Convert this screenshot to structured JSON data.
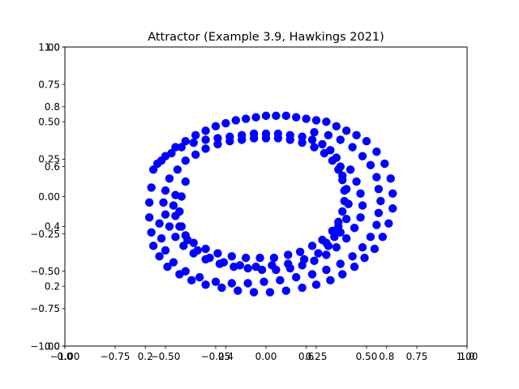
{
  "chart_data": {
    "type": "scatter",
    "title": "Attractor (Example 3.9, Hawkings 2021)",
    "xlabel": "",
    "ylabel": "",
    "grid": false,
    "legend": "none",
    "marker_color": "#0000ff",
    "axes": {
      "primary": {
        "xlim": [
          -1.0,
          1.0
        ],
        "ylim": [
          -1.0,
          1.0
        ],
        "x_ticks": [
          {
            "value": -1.0,
            "label": "−1.00"
          },
          {
            "value": -0.75,
            "label": "−0.75"
          },
          {
            "value": -0.5,
            "label": "−0.50"
          },
          {
            "value": -0.25,
            "label": "−0.25"
          },
          {
            "value": 0.0,
            "label": "0.00"
          },
          {
            "value": 0.25,
            "label": "0.25"
          },
          {
            "value": 0.5,
            "label": "0.50"
          },
          {
            "value": 0.75,
            "label": "0.75"
          },
          {
            "value": 1.0,
            "label": "1.00"
          }
        ],
        "y_ticks": [
          {
            "value": -1.0,
            "label": "−1.00"
          },
          {
            "value": -0.75,
            "label": "−0.75"
          },
          {
            "value": -0.5,
            "label": "−0.50"
          },
          {
            "value": -0.25,
            "label": "−0.25"
          },
          {
            "value": 0.0,
            "label": "0.00"
          },
          {
            "value": 0.25,
            "label": "0.25"
          },
          {
            "value": 0.5,
            "label": "0.50"
          },
          {
            "value": 0.75,
            "label": "0.75"
          },
          {
            "value": 1.0,
            "label": "1.00"
          }
        ]
      },
      "secondary": {
        "xlim": [
          0.0,
          1.0
        ],
        "ylim": [
          0.0,
          1.0
        ],
        "x_ticks": [
          {
            "value": 0.0,
            "label": "0.0"
          },
          {
            "value": 0.2,
            "label": "0.2"
          },
          {
            "value": 0.4,
            "label": "0.4"
          },
          {
            "value": 0.6,
            "label": "0.6"
          },
          {
            "value": 0.8,
            "label": "0.8"
          },
          {
            "value": 1.0,
            "label": "1.0"
          }
        ],
        "y_ticks": [
          {
            "value": 0.0,
            "label": "0.0"
          },
          {
            "value": 0.2,
            "label": "0.2"
          },
          {
            "value": 0.4,
            "label": "0.4"
          },
          {
            "value": 0.6,
            "label": "0.6"
          },
          {
            "value": 0.8,
            "label": "0.8"
          },
          {
            "value": 1.0,
            "label": "1.0"
          }
        ]
      }
    },
    "series": [
      {
        "points": [
          [
            -0.56,
            0.18
          ],
          [
            -0.54,
            0.22
          ],
          [
            -0.5,
            0.27
          ],
          [
            -0.45,
            0.33
          ],
          [
            -0.4,
            0.37
          ],
          [
            -0.35,
            0.41
          ],
          [
            -0.3,
            0.44
          ],
          [
            -0.25,
            0.47
          ],
          [
            -0.2,
            0.49
          ],
          [
            -0.15,
            0.51
          ],
          [
            -0.1,
            0.52
          ],
          [
            -0.05,
            0.53
          ],
          [
            0.0,
            0.54
          ],
          [
            0.05,
            0.54
          ],
          [
            0.1,
            0.54
          ],
          [
            0.15,
            0.53
          ],
          [
            0.2,
            0.52
          ],
          [
            0.25,
            0.51
          ],
          [
            0.3,
            0.5
          ],
          [
            0.35,
            0.47
          ],
          [
            0.4,
            0.44
          ],
          [
            0.45,
            0.41
          ],
          [
            0.5,
            0.37
          ],
          [
            0.55,
            0.3
          ],
          [
            0.59,
            0.22
          ],
          [
            0.62,
            0.12
          ],
          [
            0.63,
            0.02
          ],
          [
            0.63,
            -0.08
          ],
          [
            0.61,
            -0.18
          ],
          [
            0.58,
            -0.27
          ],
          [
            0.54,
            -0.35
          ],
          [
            0.49,
            -0.41
          ],
          [
            0.44,
            -0.47
          ],
          [
            0.38,
            -0.52
          ],
          [
            0.32,
            -0.56
          ],
          [
            0.25,
            -0.59
          ],
          [
            0.18,
            -0.61
          ],
          [
            0.1,
            -0.63
          ],
          [
            0.02,
            -0.64
          ],
          [
            -0.06,
            -0.64
          ],
          [
            -0.14,
            -0.63
          ],
          [
            -0.22,
            -0.61
          ],
          [
            -0.3,
            -0.59
          ],
          [
            -0.37,
            -0.56
          ],
          [
            -0.43,
            -0.52
          ],
          [
            -0.49,
            -0.47
          ],
          [
            -0.53,
            -0.4
          ],
          [
            -0.56,
            -0.33
          ],
          [
            -0.57,
            -0.24
          ],
          [
            -0.58,
            -0.14
          ],
          [
            -0.58,
            -0.04
          ],
          [
            -0.57,
            0.06
          ],
          [
            -0.52,
            0.24
          ],
          [
            -0.47,
            0.29
          ],
          [
            -0.42,
            0.33
          ],
          [
            -0.36,
            0.36
          ],
          [
            -0.3,
            0.38
          ],
          [
            -0.24,
            0.39
          ],
          [
            -0.18,
            0.4
          ],
          [
            -0.12,
            0.41
          ],
          [
            -0.06,
            0.42
          ],
          [
            0.0,
            0.42
          ],
          [
            0.06,
            0.42
          ],
          [
            0.12,
            0.41
          ],
          [
            0.18,
            0.4
          ],
          [
            0.23,
            0.38
          ],
          [
            0.28,
            0.35
          ],
          [
            0.32,
            0.31
          ],
          [
            0.35,
            0.26
          ],
          [
            0.37,
            0.2
          ],
          [
            0.38,
            0.14
          ],
          [
            0.42,
            0.18
          ],
          [
            0.45,
            0.1
          ],
          [
            0.47,
            0.02
          ],
          [
            0.48,
            -0.06
          ],
          [
            0.47,
            -0.14
          ],
          [
            0.44,
            -0.21
          ],
          [
            0.4,
            -0.28
          ],
          [
            0.35,
            -0.34
          ],
          [
            0.3,
            -0.39
          ],
          [
            0.24,
            -0.43
          ],
          [
            0.18,
            -0.46
          ],
          [
            0.12,
            -0.48
          ],
          [
            0.05,
            -0.49
          ],
          [
            -0.02,
            -0.49
          ],
          [
            -0.09,
            -0.48
          ],
          [
            -0.16,
            -0.47
          ],
          [
            -0.23,
            -0.45
          ],
          [
            -0.3,
            -0.42
          ],
          [
            -0.36,
            -0.38
          ],
          [
            -0.41,
            -0.33
          ],
          [
            -0.45,
            -0.27
          ],
          [
            -0.48,
            -0.2
          ],
          [
            -0.5,
            -0.12
          ],
          [
            -0.51,
            -0.04
          ],
          [
            -0.5,
            0.04
          ],
          [
            -0.48,
            0.12
          ],
          [
            -0.44,
            0.18
          ],
          [
            -0.4,
            0.24
          ],
          [
            -0.35,
            0.28
          ],
          [
            -0.3,
            0.32
          ],
          [
            -0.24,
            0.35
          ],
          [
            -0.18,
            0.37
          ],
          [
            -0.12,
            0.38
          ],
          [
            -0.06,
            0.39
          ],
          [
            0.0,
            0.39
          ],
          [
            0.06,
            0.39
          ],
          [
            0.12,
            0.38
          ],
          [
            0.18,
            0.36
          ],
          [
            0.24,
            0.33
          ],
          [
            0.29,
            0.29
          ],
          [
            0.33,
            0.24
          ],
          [
            0.36,
            0.18
          ],
          [
            0.38,
            0.11
          ],
          [
            0.39,
            0.04
          ],
          [
            0.39,
            -0.03
          ],
          [
            0.38,
            -0.1
          ],
          [
            0.36,
            -0.17
          ],
          [
            0.33,
            -0.23
          ],
          [
            0.28,
            -0.29
          ],
          [
            0.23,
            -0.33
          ],
          [
            0.17,
            -0.37
          ],
          [
            0.11,
            -0.39
          ],
          [
            0.04,
            -0.41
          ],
          [
            -0.03,
            -0.41
          ],
          [
            -0.1,
            -0.41
          ],
          [
            -0.17,
            -0.4
          ],
          [
            -0.24,
            -0.38
          ],
          [
            -0.3,
            -0.35
          ],
          [
            -0.36,
            -0.31
          ],
          [
            -0.4,
            -0.26
          ],
          [
            -0.43,
            -0.2
          ],
          [
            -0.45,
            -0.13
          ],
          [
            -0.46,
            -0.06
          ],
          [
            -0.45,
            0.01
          ],
          [
            -0.53,
            -0.18
          ],
          [
            -0.52,
            -0.28
          ],
          [
            -0.5,
            -0.36
          ],
          [
            -0.46,
            -0.44
          ],
          [
            -0.4,
            -0.5
          ],
          [
            -0.33,
            -0.54
          ],
          [
            -0.25,
            -0.57
          ],
          [
            -0.17,
            -0.58
          ],
          [
            -0.09,
            -0.58
          ],
          [
            -0.01,
            -0.57
          ],
          [
            0.07,
            -0.56
          ],
          [
            0.15,
            -0.54
          ],
          [
            0.23,
            -0.52
          ],
          [
            0.3,
            -0.49
          ],
          [
            0.37,
            -0.45
          ],
          [
            0.43,
            -0.4
          ],
          [
            0.48,
            -0.34
          ],
          [
            0.52,
            -0.27
          ],
          [
            0.55,
            -0.19
          ],
          [
            0.56,
            -0.11
          ],
          [
            0.57,
            -0.03
          ],
          [
            0.56,
            0.05
          ],
          [
            0.55,
            0.13
          ],
          [
            0.52,
            0.21
          ],
          [
            0.48,
            0.27
          ],
          [
            0.43,
            0.33
          ],
          [
            0.37,
            0.38
          ],
          [
            0.31,
            0.41
          ],
          [
            0.24,
            0.43
          ],
          [
            -0.4,
            0.1
          ],
          [
            -0.42,
            0.0
          ],
          [
            -0.43,
            -0.1
          ],
          [
            -0.42,
            -0.2
          ],
          [
            -0.39,
            -0.29
          ],
          [
            -0.34,
            -0.36
          ],
          [
            -0.28,
            -0.41
          ],
          [
            -0.21,
            -0.44
          ],
          [
            -0.13,
            -0.46
          ],
          [
            -0.05,
            -0.47
          ],
          [
            0.03,
            -0.46
          ],
          [
            0.11,
            -0.45
          ],
          [
            0.19,
            -0.42
          ],
          [
            0.26,
            -0.38
          ],
          [
            0.31,
            -0.33
          ],
          [
            0.34,
            -0.27
          ],
          [
            0.36,
            -0.2
          ],
          [
            0.4,
            0.05
          ],
          [
            0.41,
            -0.05
          ],
          [
            0.4,
            -0.15
          ],
          [
            0.37,
            -0.24
          ],
          [
            0.3,
            -0.31
          ]
        ]
      }
    ]
  }
}
